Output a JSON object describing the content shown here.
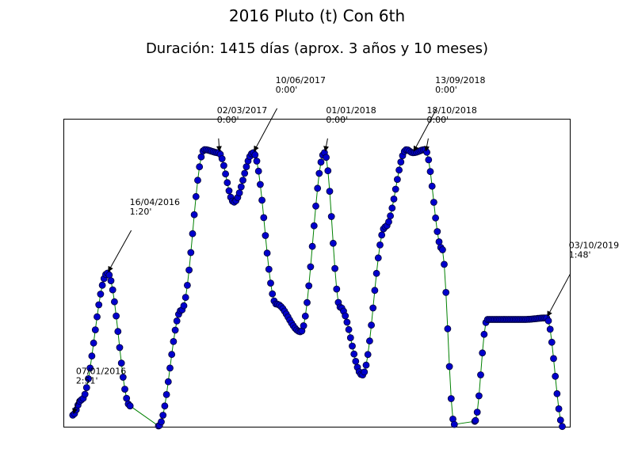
{
  "chart_data": {
    "type": "line",
    "title": "2016 Pluto (t) Con 6th",
    "subtitle": "Duración: 1415 días (aprox. 3 años y 10 meses)",
    "xlabel": "",
    "ylabel": "",
    "x_axis_ticks": "none",
    "y_axis_ticks": "none",
    "grid": false,
    "colors": {
      "line": "#008000",
      "marker_fill": "#0000cc",
      "marker_edge": "#000033"
    },
    "ylim": [
      0,
      100
    ],
    "series": [
      {
        "x": [
          "2016-01-07",
          "2016-02-01",
          "2016-04-16",
          "2016-06-20",
          "2016-07-20",
          "2016-09-10",
          "2016-11-15",
          "2017-01-20",
          "2017-03-02",
          "2017-04-15",
          "2017-06-10",
          "2017-08-15",
          "2017-10-25",
          "2018-01-01",
          "2018-02-15",
          "2018-04-20",
          "2018-06-25",
          "2018-08-25",
          "2018-09-13",
          "2018-10-18",
          "2018-12-05",
          "2019-01-10",
          "2019-03-10",
          "2019-04-15",
          "2019-08-01",
          "2019-10-03",
          "2019-11-20"
        ],
        "values": [
          4,
          9,
          50,
          7,
          1,
          0.5,
          38,
          90,
          89,
          73,
          89,
          40,
          31,
          89,
          39,
          17,
          65,
          90,
          89,
          90,
          58,
          1,
          2,
          35,
          35,
          35.5,
          0
        ]
      }
    ]
  },
  "annotations": [
    {
      "label": "07/01/2016\n2:51'",
      "x": "2016-01-07",
      "y": 4
    },
    {
      "label": "16/04/2016\n1:20'",
      "x": "2016-04-16",
      "y": 50
    },
    {
      "label": "02/03/2017\n0:00'",
      "x": "2017-03-02",
      "y": 89
    },
    {
      "label": "10/06/2017\n0:00'",
      "x": "2017-06-10",
      "y": 89
    },
    {
      "label": "01/01/2018\n0:00'",
      "x": "2018-01-01",
      "y": 89
    },
    {
      "label": "13/09/2018\n0:00'",
      "x": "2018-09-13",
      "y": 89
    },
    {
      "label": "18/10/2018\n0:00'",
      "x": "2018-10-18",
      "y": 89
    },
    {
      "label": "03/10/2019\n1:48'",
      "x": "2019-10-03",
      "y": 35.5
    }
  ]
}
